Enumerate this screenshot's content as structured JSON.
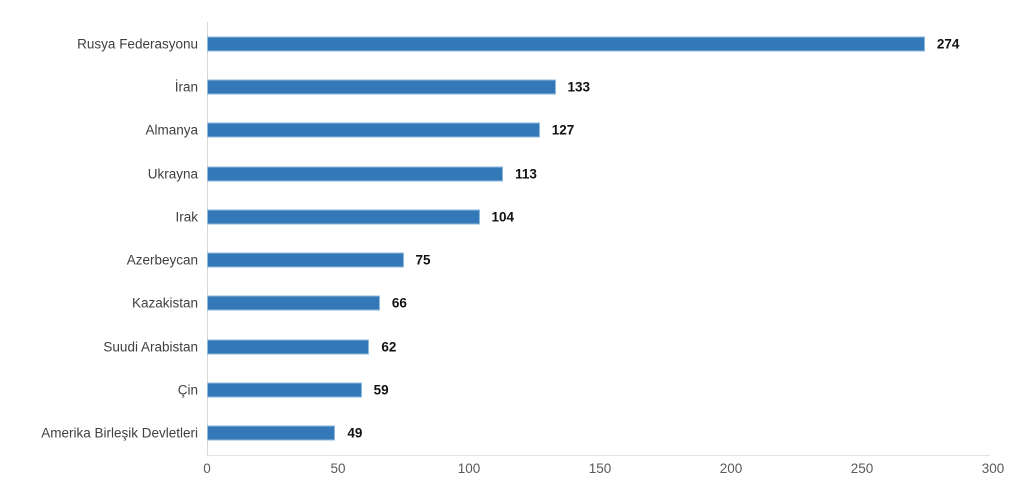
{
  "chart_data": {
    "type": "bar",
    "orientation": "horizontal",
    "title": "",
    "xlabel": "",
    "ylabel": "",
    "categories": [
      "Rusya Federasyonu",
      "İran",
      "Almanya",
      "Ukrayna",
      "Irak",
      "Azerbeycan",
      "Kazakistan",
      "Suudi Arabistan",
      "Çin",
      "Amerika Birleşik Devletleri"
    ],
    "values": [
      274,
      133,
      127,
      113,
      104,
      75,
      66,
      62,
      59,
      49
    ],
    "value_labels": [
      "274",
      "133",
      "127",
      "113",
      "104",
      "75",
      "66",
      "62",
      "59",
      "49"
    ],
    "xlim": [
      0,
      300
    ],
    "x_ticks": [
      "0",
      "50",
      "100",
      "150",
      "200",
      "250",
      "300"
    ],
    "grid": false,
    "legend": false,
    "colors": {
      "bar_fill": "#3379B7",
      "bar_edge": "#8FB8DC",
      "y_axis_line": "#D9D9D9",
      "x_axis_line": "#E2E2E2",
      "tick_label": "#595959",
      "category_label": "#404040",
      "value_label": "#121212"
    }
  }
}
